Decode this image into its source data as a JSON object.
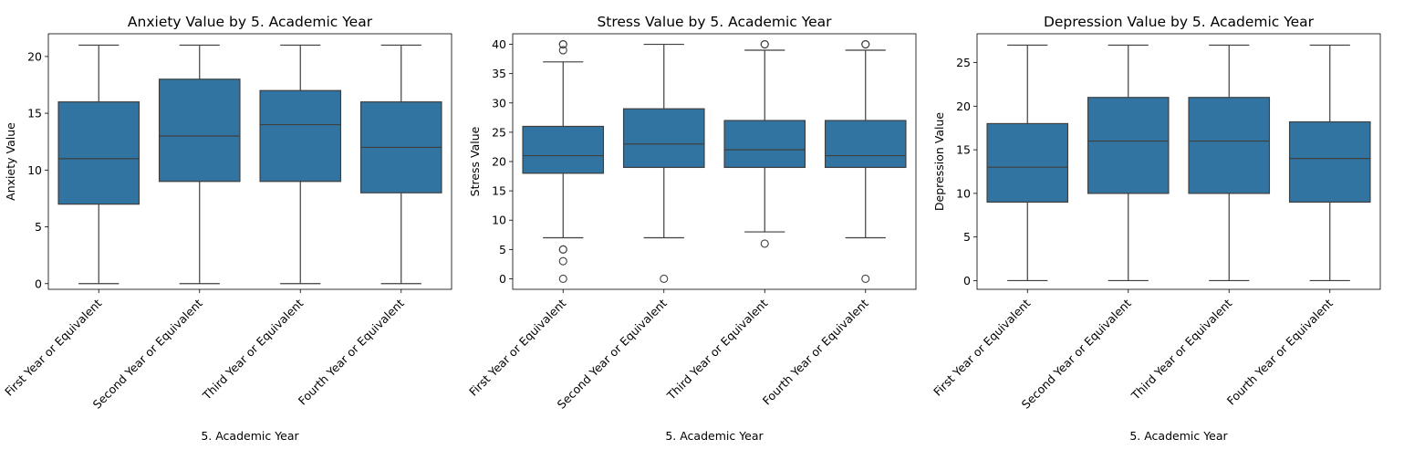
{
  "colors": {
    "box_fill": "#3274a1",
    "line": "#3f3f3f",
    "frame": "#000000"
  },
  "chart_data": [
    {
      "type": "box",
      "title": "Anxiety Value by 5. Academic Year",
      "xlabel": "5. Academic Year",
      "ylabel": "Anxiety Value",
      "ylim": [
        -0.5,
        22
      ],
      "yticks": [
        0,
        5,
        10,
        15,
        20
      ],
      "grid": false,
      "categories": [
        "First Year or Equivalent",
        "Second Year or Equivalent",
        "Third Year or Equivalent",
        "Fourth Year or Equivalent"
      ],
      "boxes": [
        {
          "whisker_low": 0,
          "q1": 7,
          "median": 11,
          "q3": 16,
          "whisker_high": 21,
          "outliers": []
        },
        {
          "whisker_low": 0,
          "q1": 9,
          "median": 13,
          "q3": 18,
          "whisker_high": 21,
          "outliers": []
        },
        {
          "whisker_low": 0,
          "q1": 9,
          "median": 14,
          "q3": 17,
          "whisker_high": 21,
          "outliers": []
        },
        {
          "whisker_low": 0,
          "q1": 8,
          "median": 12,
          "q3": 16,
          "whisker_high": 21,
          "outliers": []
        }
      ]
    },
    {
      "type": "box",
      "title": "Stress Value by 5. Academic Year",
      "xlabel": "5. Academic Year",
      "ylabel": "Stress Value",
      "ylim": [
        -1.8,
        41.8
      ],
      "yticks": [
        0,
        5,
        10,
        15,
        20,
        25,
        30,
        35,
        40
      ],
      "grid": false,
      "categories": [
        "First Year or Equivalent",
        "Second Year or Equivalent",
        "Third Year or Equivalent",
        "Fourth Year or Equivalent"
      ],
      "boxes": [
        {
          "whisker_low": 7,
          "q1": 18,
          "median": 21,
          "q3": 26,
          "whisker_high": 37,
          "outliers": [
            0,
            3,
            5,
            5,
            39,
            40,
            40
          ]
        },
        {
          "whisker_low": 7,
          "q1": 19,
          "median": 23,
          "q3": 29,
          "whisker_high": 40,
          "outliers": [
            0
          ]
        },
        {
          "whisker_low": 8,
          "q1": 19,
          "median": 22,
          "q3": 27,
          "whisker_high": 39,
          "outliers": [
            6,
            40,
            40
          ]
        },
        {
          "whisker_low": 7,
          "q1": 19,
          "median": 21,
          "q3": 27,
          "whisker_high": 39,
          "outliers": [
            0,
            40,
            40
          ]
        }
      ]
    },
    {
      "type": "box",
      "title": "Depression Value by 5. Academic Year",
      "xlabel": "5. Academic Year",
      "ylabel": "Depression Value",
      "ylim": [
        -1.0,
        28.3
      ],
      "yticks": [
        0,
        5,
        10,
        15,
        20,
        25
      ],
      "grid": false,
      "categories": [
        "First Year or Equivalent",
        "Second Year or Equivalent",
        "Third Year or Equivalent",
        "Fourth Year or Equivalent"
      ],
      "boxes": [
        {
          "whisker_low": 0,
          "q1": 9,
          "median": 13,
          "q3": 18,
          "whisker_high": 27,
          "outliers": []
        },
        {
          "whisker_low": 0,
          "q1": 10,
          "median": 16,
          "q3": 21,
          "whisker_high": 27,
          "outliers": []
        },
        {
          "whisker_low": 0,
          "q1": 10,
          "median": 16,
          "q3": 21,
          "whisker_high": 27,
          "outliers": []
        },
        {
          "whisker_low": 0,
          "q1": 9,
          "median": 14,
          "q3": 18.2,
          "whisker_high": 27,
          "outliers": []
        }
      ]
    }
  ]
}
